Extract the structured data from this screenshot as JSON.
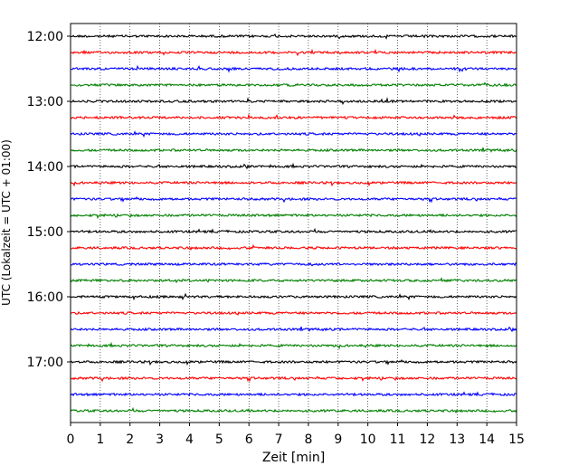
{
  "chart_data": {
    "type": "line",
    "title": "",
    "xlabel": "Zeit  [min]",
    "ylabel": "UTC (Lokalzeit = UTC + 01:00)",
    "xlim": [
      0,
      15
    ],
    "x_ticks": [
      "0",
      "1",
      "2",
      "3",
      "4",
      "5",
      "6",
      "7",
      "8",
      "9",
      "10",
      "11",
      "12",
      "13",
      "14",
      "15"
    ],
    "y_ticks": [
      "12:00",
      "13:00",
      "14:00",
      "15:00",
      "16:00",
      "17:00"
    ],
    "grid": "vertical dotted lines at each minute",
    "colors": [
      "#000000",
      "#ff0000",
      "#0000ff",
      "#008000"
    ],
    "series": [
      {
        "start": "12:00",
        "color": "#000000"
      },
      {
        "start": "12:15",
        "color": "#ff0000"
      },
      {
        "start": "12:30",
        "color": "#0000ff"
      },
      {
        "start": "12:45",
        "color": "#008000"
      },
      {
        "start": "13:00",
        "color": "#000000"
      },
      {
        "start": "13:15",
        "color": "#ff0000"
      },
      {
        "start": "13:30",
        "color": "#0000ff"
      },
      {
        "start": "13:45",
        "color": "#008000"
      },
      {
        "start": "14:00",
        "color": "#000000"
      },
      {
        "start": "14:15",
        "color": "#ff0000"
      },
      {
        "start": "14:30",
        "color": "#0000ff"
      },
      {
        "start": "14:45",
        "color": "#008000"
      },
      {
        "start": "15:00",
        "color": "#000000"
      },
      {
        "start": "15:15",
        "color": "#ff0000"
      },
      {
        "start": "15:30",
        "color": "#0000ff"
      },
      {
        "start": "15:45",
        "color": "#008000"
      },
      {
        "start": "16:00",
        "color": "#000000"
      },
      {
        "start": "16:15",
        "color": "#ff0000"
      },
      {
        "start": "16:30",
        "color": "#0000ff"
      },
      {
        "start": "16:45",
        "color": "#008000"
      },
      {
        "start": "17:00",
        "color": "#000000"
      },
      {
        "start": "17:15",
        "color": "#ff0000"
      },
      {
        "start": "17:30",
        "color": "#0000ff"
      },
      {
        "start": "17:45",
        "color": "#008000"
      }
    ]
  }
}
